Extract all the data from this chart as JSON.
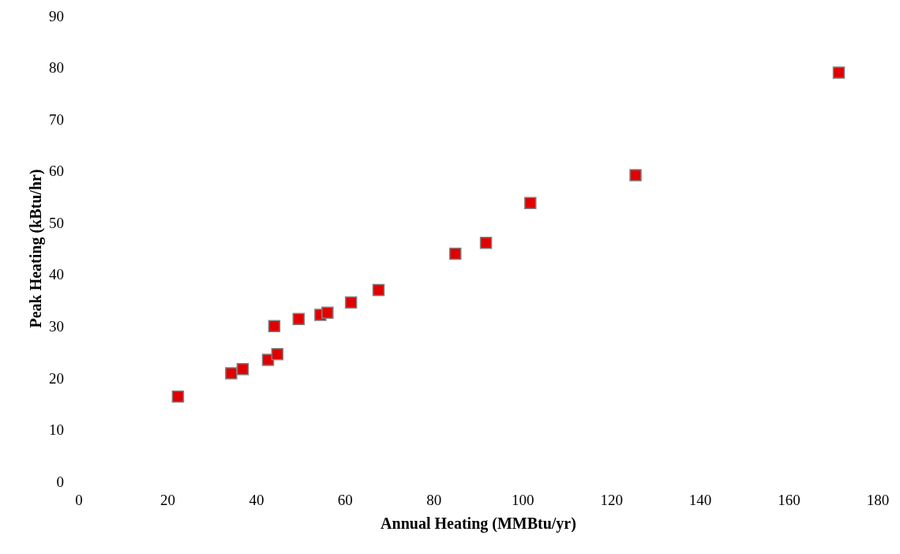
{
  "chart_data": {
    "type": "scatter",
    "xlabel": "Annual Heating (MMBtu/yr)",
    "ylabel": "Peak Heating (kBtu/hr)",
    "x": [
      22.3,
      34.3,
      36.9,
      42.6,
      44.0,
      44.7,
      49.5,
      54.4,
      56.0,
      61.3,
      67.5,
      84.8,
      91.7,
      101.7,
      125.4,
      171.2
    ],
    "series": [
      {
        "color": "#e00000",
        "values": [
          16.4,
          20.9,
          21.7,
          23.5,
          30.0,
          24.6,
          31.4,
          32.2,
          32.6,
          34.6,
          37.0,
          44.0,
          46.1,
          53.8,
          59.2,
          79.0
        ]
      }
    ],
    "marker": "square",
    "grid": false,
    "legend": false,
    "xlim": [
      0,
      180
    ],
    "xticks": [
      0,
      20,
      40,
      60,
      80,
      100,
      120,
      140,
      160,
      180
    ],
    "ylim": [
      0,
      90
    ],
    "yticks": [
      0,
      10,
      20,
      30,
      40,
      50,
      60,
      70,
      80,
      90
    ]
  }
}
